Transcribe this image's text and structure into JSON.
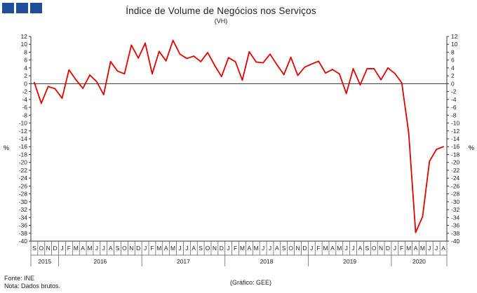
{
  "header": {
    "logo_blocks": 3,
    "logo_color": "#1f4e9a"
  },
  "footer": {
    "source": "Fonte: INE",
    "note": "Nota: Dados brutos.",
    "credit": "(Gráfico: GEE)"
  },
  "chart_data": {
    "type": "line",
    "title": "Índice de Volume de Negócios nos Serviços",
    "subtitle": "(VH)",
    "ylabel_left": "%",
    "ylabel_right": "%",
    "ylim": [
      -40,
      12
    ],
    "yticks": [
      12,
      10,
      8,
      6,
      4,
      2,
      0,
      -2,
      -4,
      -6,
      -8,
      -10,
      -12,
      -14,
      -16,
      -18,
      -20,
      -22,
      -24,
      -26,
      -28,
      -30,
      -32,
      -34,
      -36,
      -38,
      -40
    ],
    "grid": false,
    "line_color": "#e00000",
    "x": [
      "S",
      "O",
      "N",
      "D",
      "J",
      "F",
      "M",
      "A",
      "M",
      "J",
      "J",
      "A",
      "S",
      "O",
      "N",
      "D",
      "J",
      "F",
      "M",
      "A",
      "M",
      "J",
      "J",
      "A",
      "S",
      "O",
      "N",
      "D",
      "J",
      "F",
      "M",
      "A",
      "M",
      "J",
      "J",
      "A",
      "S",
      "O",
      "N",
      "D",
      "J",
      "F",
      "M",
      "A",
      "M",
      "J",
      "J",
      "A",
      "S",
      "O",
      "N",
      "D",
      "J",
      "F",
      "M",
      "A",
      "M",
      "J",
      "J",
      "A"
    ],
    "years": [
      {
        "label": "2015",
        "start": 0,
        "count": 4
      },
      {
        "label": "2016",
        "start": 4,
        "count": 12
      },
      {
        "label": "2017",
        "start": 16,
        "count": 12
      },
      {
        "label": "2018",
        "start": 28,
        "count": 12
      },
      {
        "label": "2019",
        "start": 40,
        "count": 12
      },
      {
        "label": "2020",
        "start": 52,
        "count": 8
      }
    ],
    "series": [
      {
        "values": [
          0.3,
          -5.0,
          -0.7,
          -1.3,
          -3.7,
          3.5,
          1.0,
          -1.2,
          2.2,
          0.5,
          -2.8,
          5.6,
          3.2,
          2.5,
          9.8,
          6.5,
          10.3,
          2.5,
          8.2,
          5.8,
          11.0,
          7.5,
          6.4,
          7.0,
          5.6,
          7.9,
          4.7,
          1.8,
          6.6,
          5.6,
          0.9,
          8.1,
          5.5,
          5.3,
          7.5,
          4.8,
          2.3,
          6.7,
          2.1,
          4.2,
          5.0,
          5.7,
          2.7,
          3.6,
          2.5,
          -2.5,
          3.8,
          -0.3,
          3.8,
          3.8,
          1.0,
          4.0,
          2.6,
          0.2,
          -12.5,
          -37.8,
          -33.8,
          -19.7,
          -16.7,
          -16.0
        ]
      }
    ]
  }
}
